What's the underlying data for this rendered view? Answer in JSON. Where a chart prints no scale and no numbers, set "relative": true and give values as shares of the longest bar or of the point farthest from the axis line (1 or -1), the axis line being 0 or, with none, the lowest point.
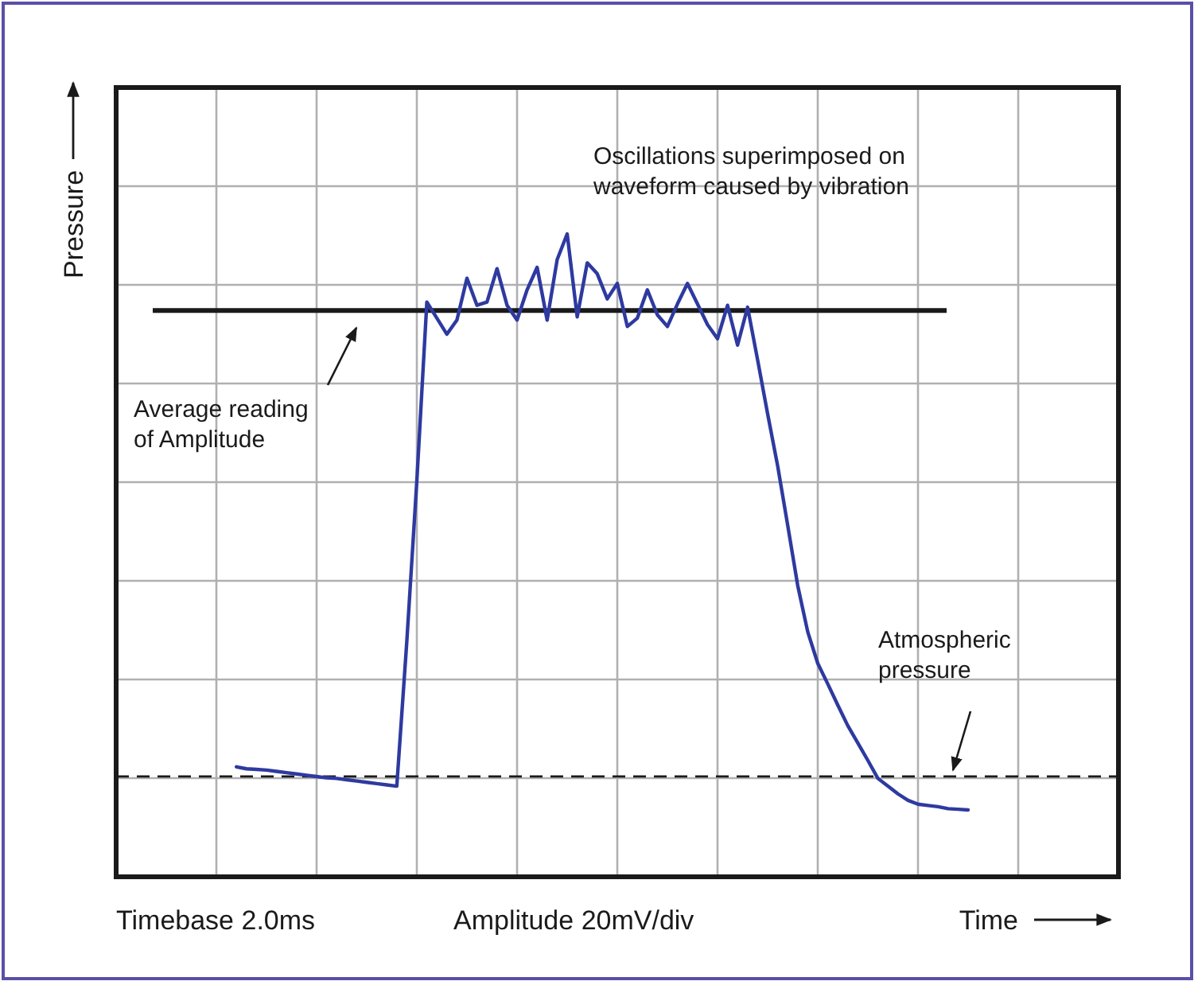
{
  "chart_data": {
    "type": "line",
    "relative": true,
    "xlabel": "Time",
    "ylabel": "Pressure",
    "grid": true,
    "line_style": "solid",
    "categories": [
      null,
      null,
      null,
      null,
      null,
      null,
      null,
      null,
      null,
      null,
      null,
      null,
      null,
      null,
      null,
      null,
      null,
      null,
      null,
      null,
      null,
      null,
      null,
      null,
      null,
      null,
      null,
      null,
      null,
      null,
      null,
      null,
      null,
      null,
      null,
      null,
      null,
      null,
      null,
      null,
      null,
      null,
      null,
      null,
      null,
      null,
      null,
      null,
      null,
      null,
      null,
      null,
      null,
      null,
      null,
      null,
      null,
      null,
      null,
      null,
      null,
      null,
      null,
      null,
      null,
      null,
      null,
      null,
      null,
      null,
      null,
      null,
      null,
      null,
      null,
      null,
      null,
      null,
      null,
      null,
      null,
      null,
      null,
      null,
      null,
      null,
      null,
      null,
      null,
      null,
      null,
      null,
      null,
      null,
      null,
      null,
      null,
      null,
      null,
      null,
      null
    ],
    "series": [
      {
        "color": "#2e3aa0",
        "values": [
          null,
          null,
          null,
          null,
          null,
          null,
          null,
          null,
          null,
          null,
          null,
          null,
          0.171,
          0.168,
          0.167,
          0.166,
          0.164,
          0.162,
          0.16,
          0.158,
          0.156,
          0.154,
          0.153,
          0.151,
          0.149,
          0.147,
          0.145,
          0.143,
          0.141,
          0.366,
          0.616,
          0.894,
          0.869,
          0.844,
          0.866,
          0.931,
          0.889,
          0.894,
          0.946,
          0.889,
          0.866,
          0.913,
          0.948,
          0.866,
          0.96,
          1,
          0.871,
          0.955,
          0.938,
          0.899,
          0.923,
          0.856,
          0.869,
          0.913,
          0.874,
          0.856,
          0.891,
          0.923,
          0.891,
          0.859,
          0.837,
          0.889,
          0.827,
          0.886,
          0.804,
          0.72,
          0.639,
          0.547,
          0.453,
          0.381,
          0.332,
          0.3,
          0.267,
          0.235,
          0.208,
          0.181,
          0.153,
          0.141,
          0.129,
          0.119,
          0.113,
          0.111,
          0.109,
          0.106,
          0.105,
          0.104,
          null,
          null,
          null,
          null,
          null,
          null,
          null,
          null,
          null,
          null,
          null,
          null,
          null,
          null,
          null
        ]
      }
    ],
    "ref_lines": [
      {
        "axis": "y",
        "value": 0.881,
        "color": "#1a1a1a",
        "line_style": "solid"
      },
      {
        "axis": "y",
        "value": 0.156,
        "label": "Atmospheric\npressure",
        "color": "#1a1a1a",
        "line_style": "dashed"
      }
    ],
    "annotations": [
      "Oscillations superimposed on\nwaveform caused by vibration",
      "Timebase 2.0ms",
      "Amplitude 20mV/div",
      "Average reading\nof Amplitude"
    ]
  }
}
